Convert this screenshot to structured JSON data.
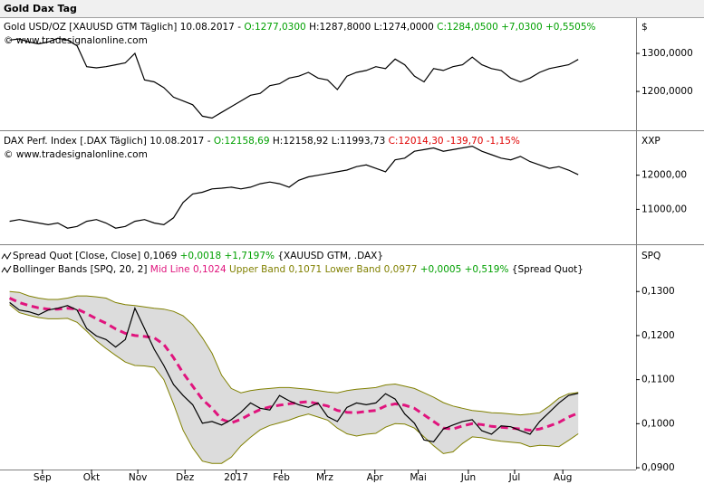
{
  "window_title": "Gold Dax Tag",
  "chart_data": [
    {
      "type": "line",
      "header": [
        [
          {
            "text": "Gold USD/OZ [XAUUSD GTM Täglich] 10.08.2017 - ",
            "color": "#000000"
          },
          {
            "text": "O:1277,0300",
            "color": "#00a000"
          },
          {
            "text": " H:1287,8000 L:1274,0000 ",
            "color": "#000000"
          },
          {
            "text": "C:1284,0500 +7,0300 +0,5505%",
            "color": "#00a000"
          }
        ],
        [
          {
            "text": "© www.tradesignalonline.com",
            "color": "#000000"
          }
        ]
      ],
      "unit": "$",
      "xlim": [
        -1,
        65
      ],
      "ylim": [
        1105,
        1388
      ],
      "yticks": [
        {
          "value": 1300,
          "label": "1300,0000"
        },
        {
          "value": 1200,
          "label": "1200,0000"
        }
      ],
      "series": [
        {
          "color": "#000000",
          "values": [
            1335,
            1338,
            1330,
            1325,
            1330,
            1340,
            1335,
            1320,
            1265,
            1262,
            1265,
            1270,
            1275,
            1300,
            1230,
            1225,
            1210,
            1185,
            1175,
            1165,
            1135,
            1130,
            1145,
            1160,
            1175,
            1190,
            1195,
            1215,
            1220,
            1235,
            1240,
            1250,
            1235,
            1230,
            1205,
            1240,
            1250,
            1255,
            1265,
            1260,
            1285,
            1270,
            1240,
            1225,
            1260,
            1255,
            1265,
            1270,
            1290,
            1270,
            1260,
            1255,
            1235,
            1225,
            1235,
            1250,
            1260,
            1265,
            1270,
            1284
          ]
        }
      ]
    },
    {
      "type": "line",
      "header": [
        [
          {
            "text": "DAX Perf. Index [.DAX  Täglich] 10.08.2017 - ",
            "color": "#000000"
          },
          {
            "text": "O:12158,69",
            "color": "#00a000"
          },
          {
            "text": " H:12158,92 L:11993,73 ",
            "color": "#000000"
          },
          {
            "text": "C:12014,30 -139,70 -1,15%",
            "color": "#e00000"
          }
        ],
        [
          {
            "text": "© www.tradesignalonline.com",
            "color": "#000000"
          }
        ]
      ],
      "unit": "XXP",
      "xlim": [
        -1,
        65
      ],
      "ylim": [
        10030,
        13210
      ],
      "yticks": [
        {
          "value": 12000,
          "label": "12000,00"
        },
        {
          "value": 11000,
          "label": "11000,00"
        }
      ],
      "series": [
        {
          "color": "#000000",
          "values": [
            10650,
            10700,
            10650,
            10600,
            10550,
            10600,
            10450,
            10500,
            10650,
            10700,
            10600,
            10450,
            10500,
            10650,
            10700,
            10600,
            10550,
            10750,
            11200,
            11450,
            11500,
            11600,
            11620,
            11650,
            11600,
            11650,
            11750,
            11800,
            11750,
            11650,
            11850,
            11950,
            12000,
            12050,
            12100,
            12150,
            12250,
            12300,
            12200,
            12100,
            12450,
            12500,
            12700,
            12750,
            12800,
            12700,
            12750,
            12800,
            12850,
            12700,
            12600,
            12500,
            12450,
            12550,
            12400,
            12300,
            12200,
            12250,
            12150,
            12014
          ]
        }
      ]
    },
    {
      "type": "bollinger",
      "header": [
        [
          {
            "text": "Spread Quot [Close, Close] 0,1069 ",
            "color": "#000000"
          },
          {
            "text": "+0,0018 +1,7197%",
            "color": "#00a000"
          },
          {
            "text": " {XAUUSD GTM, .DAX}",
            "color": "#000000"
          }
        ],
        [
          {
            "text": "Bollinger Bands [SPQ, 20, 2] ",
            "color": "#000000"
          },
          {
            "text": "Mid Line 0,1024",
            "color": "#e0147d"
          },
          {
            "text": " Upper Band 0,1071",
            "color": "#808000"
          },
          {
            "text": " Lower Band 0,0977",
            "color": "#808000"
          },
          {
            "text": " +0,0005 +0,519%",
            "color": "#00a000"
          },
          {
            "text": " {Spread Quot}",
            "color": "#000000"
          }
        ]
      ],
      "unit": "SPQ",
      "xlim": [
        -1,
        65
      ],
      "ylim": [
        0.0898,
        0.1397
      ],
      "yticks": [
        {
          "value": 0.13,
          "label": "0,1300"
        },
        {
          "value": 0.12,
          "label": "0,1200"
        },
        {
          "value": 0.11,
          "label": "0,1100"
        },
        {
          "value": 0.1,
          "label": "0,1000"
        },
        {
          "value": 0.09,
          "label": "0,0900"
        }
      ],
      "xticks": [
        {
          "value": 3.4,
          "label": "Sep"
        },
        {
          "value": 8.5,
          "label": "Okt"
        },
        {
          "value": 13.3,
          "label": "Nov"
        },
        {
          "value": 18.2,
          "label": "Dez"
        },
        {
          "value": 23.5,
          "label": "2017"
        },
        {
          "value": 28.2,
          "label": "Feb"
        },
        {
          "value": 32.7,
          "label": "Mrz"
        },
        {
          "value": 37.9,
          "label": "Apr"
        },
        {
          "value": 42.4,
          "label": "Mai"
        },
        {
          "value": 47.6,
          "label": "Jun"
        },
        {
          "value": 52.4,
          "label": "Jul"
        },
        {
          "value": 57.4,
          "label": "Aug"
        }
      ],
      "bands": {
        "fill": "#dcdcdc",
        "band_color": "#808000",
        "mid_color": "#e0147d",
        "upper": [
          0.13,
          0.1298,
          0.129,
          0.1285,
          0.1282,
          0.1282,
          0.1285,
          0.129,
          0.129,
          0.1288,
          0.1285,
          0.1275,
          0.127,
          0.1268,
          0.1265,
          0.1262,
          0.126,
          0.1255,
          0.1245,
          0.1225,
          0.1195,
          0.116,
          0.111,
          0.108,
          0.107,
          0.1075,
          0.1078,
          0.108,
          0.1082,
          0.1082,
          0.108,
          0.1078,
          0.1075,
          0.1072,
          0.107,
          0.1075,
          0.1078,
          0.108,
          0.1082,
          0.1088,
          0.109,
          0.1085,
          0.108,
          0.107,
          0.106,
          0.1048,
          0.104,
          0.1035,
          0.103,
          0.1028,
          0.1025,
          0.1024,
          0.1022,
          0.102,
          0.1022,
          0.1025,
          0.104,
          0.1058,
          0.1068,
          0.1071
        ],
        "mid": [
          0.1285,
          0.1275,
          0.1268,
          0.1263,
          0.126,
          0.126,
          0.1262,
          0.126,
          0.125,
          0.1238,
          0.1228,
          0.1215,
          0.1205,
          0.12,
          0.1198,
          0.1195,
          0.118,
          0.115,
          0.1115,
          0.1085,
          0.1055,
          0.1035,
          0.101,
          0.1002,
          0.101,
          0.1022,
          0.1032,
          0.1038,
          0.1042,
          0.1045,
          0.1048,
          0.105,
          0.1045,
          0.104,
          0.103,
          0.1026,
          0.1025,
          0.1028,
          0.103,
          0.104,
          0.1045,
          0.1042,
          0.1035,
          0.102,
          0.1005,
          0.099,
          0.0988,
          0.0995,
          0.1,
          0.0998,
          0.0994,
          0.0992,
          0.099,
          0.0988,
          0.0985,
          0.0988,
          0.0995,
          0.1003,
          0.1015,
          0.1024
        ],
        "lower": [
          0.127,
          0.1252,
          0.1246,
          0.1241,
          0.1238,
          0.1238,
          0.1239,
          0.123,
          0.121,
          0.1188,
          0.1171,
          0.1155,
          0.114,
          0.1132,
          0.1131,
          0.1128,
          0.11,
          0.1045,
          0.0985,
          0.0945,
          0.0915,
          0.091,
          0.091,
          0.0924,
          0.095,
          0.0969,
          0.0986,
          0.0996,
          0.1002,
          0.1008,
          0.1016,
          0.1022,
          0.1015,
          0.1008,
          0.099,
          0.0977,
          0.0972,
          0.0976,
          0.0978,
          0.0992,
          0.1,
          0.0999,
          0.099,
          0.097,
          0.095,
          0.0932,
          0.0936,
          0.0955,
          0.097,
          0.0968,
          0.0963,
          0.096,
          0.0958,
          0.0956,
          0.0948,
          0.0951,
          0.095,
          0.0948,
          0.0962,
          0.0977
        ]
      },
      "series": [
        {
          "color": "#000000",
          "values": [
            0.1275,
            0.1258,
            0.1254,
            0.1247,
            0.1258,
            0.1262,
            0.1268,
            0.1258,
            0.1216,
            0.1199,
            0.1191,
            0.1174,
            0.1191,
            0.1262,
            0.1216,
            0.1169,
            0.1132,
            0.1089,
            0.1064,
            0.1043,
            0.1001,
            0.1005,
            0.0997,
            0.1009,
            0.1026,
            0.1047,
            0.1035,
            0.1031,
            0.1064,
            0.1052,
            0.1043,
            0.1037,
            0.1047,
            0.1016,
            0.1005,
            0.1037,
            0.1047,
            0.1043,
            0.1047,
            0.1068,
            0.1056,
            0.1022,
            0.1001,
            0.0963,
            0.0959,
            0.0988,
            0.0997,
            0.1005,
            0.1009,
            0.0984,
            0.0976,
            0.0995,
            0.0993,
            0.0984,
            0.0976,
            0.1005,
            0.1026,
            0.1047,
            0.1064,
            0.1069
          ]
        }
      ]
    }
  ]
}
